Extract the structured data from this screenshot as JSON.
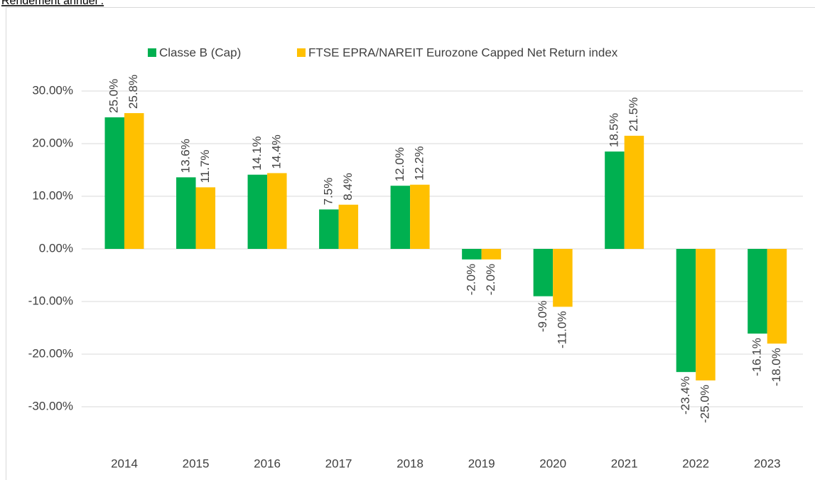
{
  "chart_data": {
    "type": "bar",
    "title": "Rendement annuel :",
    "categories": [
      "2014",
      "2015",
      "2016",
      "2017",
      "2018",
      "2019",
      "2020",
      "2021",
      "2022",
      "2023"
    ],
    "series": [
      {
        "name": "Classe B (Cap)",
        "color": "#00b050",
        "values": [
          25.0,
          13.6,
          14.1,
          7.5,
          12.0,
          -2.0,
          -9.0,
          18.5,
          -23.4,
          -16.1
        ],
        "value_labels": [
          "25.0%",
          "13.6%",
          "14.1%",
          "7.5%",
          "12.0%",
          "-2.0%",
          "-9.0%",
          "18.5%",
          "-23.4%",
          "-16.1%"
        ]
      },
      {
        "name": "FTSE EPRA/NAREIT Eurozone Capped Net Return index",
        "color": "#ffc000",
        "values": [
          25.8,
          11.7,
          14.4,
          8.4,
          12.2,
          -2.0,
          -11.0,
          21.5,
          -25.0,
          -18.0
        ],
        "value_labels": [
          "25.8%",
          "11.7%",
          "14.4%",
          "8.4%",
          "12.2%",
          "-2.0%",
          "-11.0%",
          "21.5%",
          "-25.0%",
          "-18.0%"
        ]
      }
    ],
    "ylim": [
      -40,
      40
    ],
    "yticks": [
      {
        "value": -30,
        "label": "-30.00%"
      },
      {
        "value": -20,
        "label": "-20.00%"
      },
      {
        "value": -10,
        "label": "-10.00%"
      },
      {
        "value": 0,
        "label": "0.00%"
      },
      {
        "value": 10,
        "label": "10.00%"
      },
      {
        "value": 20,
        "label": "20.00%"
      },
      {
        "value": 30,
        "label": "30.00%"
      }
    ],
    "grid": true,
    "legend": "top"
  }
}
